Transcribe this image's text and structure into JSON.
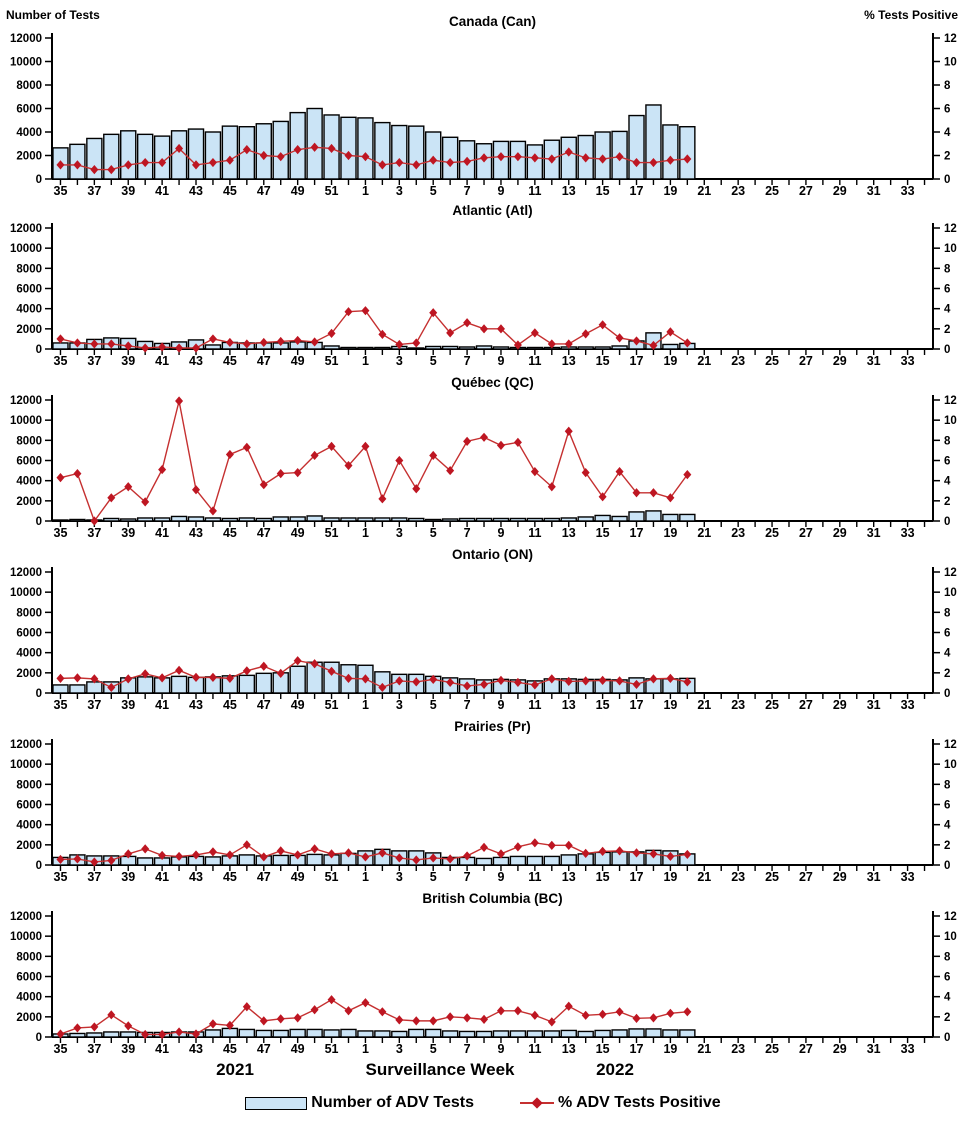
{
  "figure": {
    "left_axis_header": "Number of Tests",
    "right_axis_header": "% Tests Positive",
    "x_axis": {
      "label": "Surveillance Week",
      "year_left": "2021",
      "year_right": "2022",
      "tick_labels": [
        "35",
        "37",
        "39",
        "41",
        "43",
        "45",
        "47",
        "49",
        "51",
        "1",
        "3",
        "5",
        "7",
        "9",
        "11",
        "13",
        "15",
        "17",
        "19",
        "21",
        "23",
        "25",
        "27",
        "29",
        "31",
        "33"
      ]
    },
    "y_left_axis": {
      "min": 0,
      "max": 12000,
      "step": 2000
    },
    "y_right_axis": {
      "min": 0,
      "max": 12,
      "step": 2
    },
    "legend": {
      "bars_label": "Number of ADV Tests",
      "line_label": "% ADV Tests Positive"
    },
    "colors": {
      "bar_fill": "#CBE4F6",
      "bar_stroke": "#000000",
      "line": "#C53030",
      "marker": "#BE1622"
    }
  },
  "chart_data": [
    {
      "type": "bar",
      "title": "Canada (Can)",
      "categories": [
        "35",
        "36",
        "37",
        "38",
        "39",
        "40",
        "41",
        "42",
        "43",
        "44",
        "45",
        "46",
        "47",
        "48",
        "49",
        "50",
        "51",
        "52",
        "1",
        "2",
        "3",
        "4",
        "5",
        "6",
        "7",
        "8",
        "9",
        "10",
        "11",
        "12",
        "13",
        "14",
        "15",
        "16",
        "17",
        "18",
        "19",
        "20"
      ],
      "series": [
        {
          "name": "Number of ADV Tests",
          "axis": "left",
          "values": [
            2650,
            2950,
            3450,
            3800,
            4100,
            3800,
            3650,
            4100,
            4250,
            4000,
            4500,
            4450,
            4700,
            4900,
            5650,
            6000,
            5450,
            5250,
            5200,
            4800,
            4550,
            4500,
            4000,
            3550,
            3250,
            3000,
            3200,
            3200,
            2900,
            3300,
            3550,
            3700,
            4000,
            4050,
            5400,
            6300,
            4600,
            4450
          ]
        },
        {
          "name": "% ADV Tests Positive",
          "axis": "right",
          "values": [
            1.2,
            1.2,
            0.8,
            0.8,
            1.2,
            1.4,
            1.4,
            2.6,
            1.2,
            1.4,
            1.6,
            2.5,
            2.0,
            1.9,
            2.5,
            2.7,
            2.6,
            2.0,
            1.9,
            1.2,
            1.4,
            1.2,
            1.6,
            1.4,
            1.5,
            1.8,
            1.9,
            1.9,
            1.8,
            1.7,
            2.3,
            1.8,
            1.7,
            1.9,
            1.4,
            1.4,
            1.6,
            1.7
          ]
        }
      ]
    },
    {
      "type": "bar",
      "title": "Atlantic (Atl)",
      "categories": [
        "35",
        "36",
        "37",
        "38",
        "39",
        "40",
        "41",
        "42",
        "43",
        "44",
        "45",
        "46",
        "47",
        "48",
        "49",
        "50",
        "51",
        "52",
        "1",
        "2",
        "3",
        "4",
        "5",
        "6",
        "7",
        "8",
        "9",
        "10",
        "11",
        "12",
        "13",
        "14",
        "15",
        "16",
        "17",
        "18",
        "19",
        "20"
      ],
      "series": [
        {
          "name": "Number of ADV Tests",
          "axis": "left",
          "values": [
            600,
            600,
            950,
            1100,
            1050,
            750,
            550,
            700,
            900,
            400,
            650,
            600,
            600,
            600,
            700,
            650,
            300,
            150,
            150,
            150,
            250,
            100,
            250,
            250,
            200,
            300,
            200,
            150,
            150,
            150,
            200,
            200,
            200,
            300,
            800,
            1600,
            450,
            550
          ]
        },
        {
          "name": "% ADV Tests Positive",
          "axis": "right",
          "values": [
            1.0,
            0.6,
            0.5,
            0.5,
            0.3,
            0.1,
            0.2,
            0.1,
            0.1,
            1.0,
            0.65,
            0.5,
            0.65,
            0.75,
            0.85,
            0.7,
            1.55,
            3.7,
            3.8,
            1.45,
            0.45,
            0.6,
            3.6,
            1.6,
            2.6,
            2.0,
            2.0,
            0.4,
            1.6,
            0.5,
            0.5,
            1.5,
            2.4,
            1.1,
            0.8,
            0.35,
            1.7,
            0.6
          ]
        }
      ]
    },
    {
      "type": "bar",
      "title": "Québec (QC)",
      "categories": [
        "35",
        "36",
        "37",
        "38",
        "39",
        "40",
        "41",
        "42",
        "43",
        "44",
        "45",
        "46",
        "47",
        "48",
        "49",
        "50",
        "51",
        "52",
        "1",
        "2",
        "3",
        "4",
        "5",
        "6",
        "7",
        "8",
        "9",
        "10",
        "11",
        "12",
        "13",
        "14",
        "15",
        "16",
        "17",
        "18",
        "19",
        "20"
      ],
      "series": [
        {
          "name": "Number of ADV Tests",
          "axis": "left",
          "values": [
            100,
            150,
            100,
            250,
            200,
            300,
            300,
            450,
            400,
            300,
            250,
            300,
            250,
            400,
            400,
            500,
            300,
            300,
            300,
            300,
            300,
            250,
            150,
            200,
            250,
            250,
            250,
            250,
            250,
            250,
            300,
            400,
            550,
            450,
            900,
            1000,
            650,
            650
          ]
        },
        {
          "name": "% ADV Tests Positive",
          "axis": "right",
          "values": [
            4.3,
            4.7,
            0.0,
            2.3,
            3.4,
            1.9,
            5.1,
            11.9,
            3.1,
            1.0,
            6.6,
            7.3,
            3.6,
            4.7,
            4.8,
            6.5,
            7.4,
            5.5,
            7.4,
            2.2,
            6.0,
            3.2,
            6.5,
            5.0,
            7.9,
            8.3,
            7.5,
            7.8,
            4.9,
            3.4,
            8.9,
            4.8,
            2.4,
            4.9,
            2.8,
            2.8,
            2.3,
            4.6
          ]
        }
      ]
    },
    {
      "type": "bar",
      "title": "Ontario (ON)",
      "categories": [
        "35",
        "36",
        "37",
        "38",
        "39",
        "40",
        "41",
        "42",
        "43",
        "44",
        "45",
        "46",
        "47",
        "48",
        "49",
        "50",
        "51",
        "52",
        "1",
        "2",
        "3",
        "4",
        "5",
        "6",
        "7",
        "8",
        "9",
        "10",
        "11",
        "12",
        "13",
        "14",
        "15",
        "16",
        "17",
        "18",
        "19",
        "20"
      ],
      "series": [
        {
          "name": "Number of ADV Tests",
          "axis": "left",
          "values": [
            800,
            800,
            1100,
            1100,
            1500,
            1600,
            1500,
            1650,
            1550,
            1600,
            1700,
            1750,
            1950,
            2000,
            2650,
            3050,
            3050,
            2800,
            2750,
            2100,
            1850,
            1850,
            1650,
            1500,
            1400,
            1300,
            1350,
            1300,
            1200,
            1400,
            1400,
            1350,
            1350,
            1300,
            1500,
            1400,
            1400,
            1450
          ]
        },
        {
          "name": "% ADV Tests Positive",
          "axis": "right",
          "values": [
            1.45,
            1.5,
            1.4,
            0.55,
            1.4,
            1.9,
            1.5,
            2.25,
            1.55,
            1.55,
            1.45,
            2.2,
            2.65,
            1.95,
            3.2,
            2.9,
            2.15,
            1.45,
            1.4,
            0.55,
            1.2,
            1.1,
            1.35,
            1.05,
            0.7,
            0.85,
            1.25,
            1.05,
            0.8,
            1.4,
            1.15,
            1.2,
            1.25,
            1.2,
            0.85,
            1.4,
            1.45,
            1.1
          ]
        }
      ]
    },
    {
      "type": "bar",
      "title": "Prairies (Pr)",
      "categories": [
        "35",
        "36",
        "37",
        "38",
        "39",
        "40",
        "41",
        "42",
        "43",
        "44",
        "45",
        "46",
        "47",
        "48",
        "49",
        "50",
        "51",
        "52",
        "1",
        "2",
        "3",
        "4",
        "5",
        "6",
        "7",
        "8",
        "9",
        "10",
        "11",
        "12",
        "13",
        "14",
        "15",
        "16",
        "17",
        "18",
        "19",
        "20"
      ],
      "series": [
        {
          "name": "Number of ADV Tests",
          "axis": "left",
          "values": [
            750,
            1000,
            900,
            900,
            850,
            700,
            700,
            800,
            850,
            800,
            900,
            1000,
            900,
            950,
            950,
            1050,
            1000,
            1150,
            1400,
            1550,
            1400,
            1400,
            1200,
            750,
            750,
            650,
            750,
            850,
            850,
            850,
            1000,
            1100,
            1250,
            1300,
            1300,
            1450,
            1400,
            1100
          ]
        },
        {
          "name": "% ADV Tests Positive",
          "axis": "right",
          "values": [
            0.55,
            0.6,
            0.3,
            0.45,
            1.1,
            1.6,
            0.95,
            0.85,
            1.0,
            1.3,
            1.0,
            2.0,
            0.8,
            1.4,
            1.0,
            1.6,
            1.1,
            1.2,
            0.8,
            1.2,
            0.7,
            0.5,
            0.7,
            0.6,
            0.9,
            1.75,
            1.1,
            1.8,
            2.2,
            1.95,
            1.95,
            1.15,
            1.35,
            1.4,
            1.2,
            1.1,
            0.85,
            1.05
          ]
        }
      ]
    },
    {
      "type": "bar",
      "title": "British Columbia (BC)",
      "categories": [
        "35",
        "36",
        "37",
        "38",
        "39",
        "40",
        "41",
        "42",
        "43",
        "44",
        "45",
        "46",
        "47",
        "48",
        "49",
        "50",
        "51",
        "52",
        "1",
        "2",
        "3",
        "4",
        "5",
        "6",
        "7",
        "8",
        "9",
        "10",
        "11",
        "12",
        "13",
        "14",
        "15",
        "16",
        "17",
        "18",
        "19",
        "20"
      ],
      "series": [
        {
          "name": "Number of ADV Tests",
          "axis": "left",
          "values": [
            300,
            350,
            400,
            500,
            500,
            450,
            450,
            500,
            500,
            700,
            850,
            750,
            650,
            650,
            750,
            750,
            700,
            750,
            600,
            600,
            550,
            750,
            750,
            600,
            550,
            550,
            600,
            600,
            600,
            600,
            650,
            550,
            650,
            700,
            800,
            800,
            700,
            700
          ]
        },
        {
          "name": "% ADV Tests Positive",
          "axis": "right",
          "values": [
            0.3,
            0.9,
            1.0,
            2.2,
            1.1,
            0.25,
            0.25,
            0.5,
            0.3,
            1.3,
            1.15,
            3.0,
            1.6,
            1.8,
            1.9,
            2.7,
            3.7,
            2.6,
            3.4,
            2.5,
            1.7,
            1.6,
            1.6,
            2.0,
            1.9,
            1.75,
            2.6,
            2.6,
            2.15,
            1.5,
            3.05,
            2.15,
            2.25,
            2.5,
            1.85,
            1.9,
            2.35,
            2.5
          ]
        }
      ]
    }
  ]
}
